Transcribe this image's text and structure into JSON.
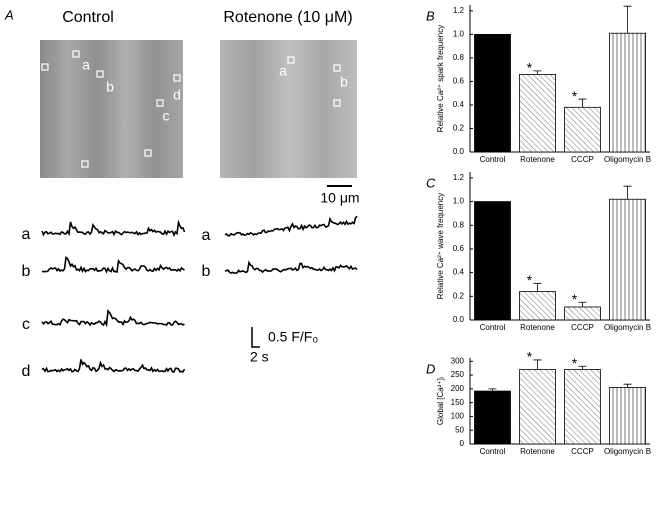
{
  "panel_a": {
    "label": "A",
    "titles": [
      "Control",
      "Rotenone (10 μM)"
    ],
    "region_labels_control": [
      "a",
      "b",
      "c",
      "d"
    ],
    "region_labels_rotenone": [
      "a",
      "b"
    ],
    "trace_labels_control": [
      "a",
      "b",
      "c",
      "d"
    ],
    "trace_labels_rotenone": [
      "a",
      "b"
    ],
    "scale_bar_image": "10 μm",
    "scale_bar_y": "0.5 F/F₀",
    "scale_bar_x": "2 s"
  },
  "chart_data": [
    {
      "type": "bar",
      "panel": "B",
      "y_label": "Relative Ca²⁺ spark frequency",
      "categories": [
        "Control",
        "Rotenone",
        "CCCP",
        "Oligomycin B"
      ],
      "values": [
        1.0,
        0.66,
        0.38,
        1.01
      ],
      "errors": [
        null,
        0.03,
        0.07,
        0.23
      ],
      "markers": [
        null,
        "*",
        "*",
        null
      ],
      "fills": [
        "solid",
        "diagonal",
        "diagonal",
        "vertical"
      ],
      "color": "#000000",
      "ylim": [
        0,
        1.25
      ],
      "yticks": [
        {
          "value": 0,
          "label": "0.0"
        },
        {
          "value": 0.2,
          "label": "0.2"
        },
        {
          "value": 0.4,
          "label": "0.4"
        },
        {
          "value": 0.6,
          "label": "0.6"
        },
        {
          "value": 0.8,
          "label": "0.8"
        },
        {
          "value": 1.0,
          "label": "1.0"
        },
        {
          "value": 1.2,
          "label": "1.2"
        }
      ]
    },
    {
      "type": "bar",
      "panel": "C",
      "y_label": "Relative Ca²⁺ wave frequency",
      "categories": [
        "Control",
        "Rotenone",
        "CCCP",
        "Oligomycin B"
      ],
      "values": [
        1.0,
        0.24,
        0.11,
        1.02
      ],
      "errors": [
        null,
        0.07,
        0.04,
        0.11
      ],
      "markers": [
        null,
        "*",
        "*",
        null
      ],
      "fills": [
        "solid",
        "diagonal",
        "diagonal",
        "vertical"
      ],
      "color": "#000000",
      "ylim": [
        0,
        1.25
      ],
      "yticks": [
        {
          "value": 0,
          "label": "0.0"
        },
        {
          "value": 0.2,
          "label": "0.2"
        },
        {
          "value": 0.4,
          "label": "0.4"
        },
        {
          "value": 0.6,
          "label": "0.6"
        },
        {
          "value": 0.8,
          "label": "0.8"
        },
        {
          "value": 1.0,
          "label": "1.0"
        },
        {
          "value": 1.2,
          "label": "1.2"
        }
      ]
    },
    {
      "type": "bar",
      "panel": "D",
      "y_label": "Global [Ca²⁺]ᵢ",
      "categories": [
        "Control",
        "Rotenone",
        "CCCP",
        "Oligomycin B"
      ],
      "values": [
        192,
        270,
        270,
        205
      ],
      "errors": [
        8,
        35,
        12,
        12
      ],
      "markers": [
        null,
        "*",
        "*",
        null
      ],
      "fills": [
        "solid",
        "diagonal",
        "diagonal",
        "vertical"
      ],
      "color": "#000000",
      "ylim": [
        0,
        312
      ],
      "yticks": [
        0,
        50,
        100,
        150,
        200,
        250,
        300
      ]
    }
  ]
}
